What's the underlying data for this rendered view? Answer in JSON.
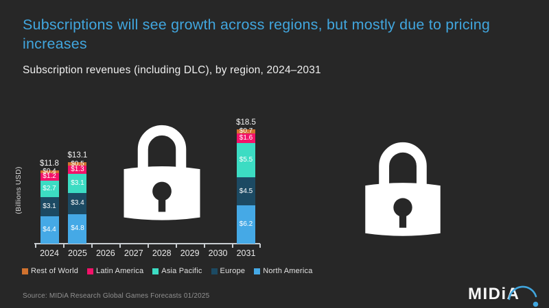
{
  "title": "Subscriptions will see growth across regions, but mostly due to pricing increases",
  "subtitle": "Subscription revenues (including DLC), by region, 2024–2031",
  "chart_data": {
    "type": "bar",
    "stacked": true,
    "title": "Subscription revenues (including DLC), by region, 2024–2031",
    "xlabel": "",
    "ylabel": "(Billions USD)",
    "categories": [
      "2024",
      "2025",
      "2026",
      "2027",
      "2028",
      "2029",
      "2030",
      "2031"
    ],
    "series": [
      {
        "name": "North America",
        "color": "#45a9e6",
        "values": [
          4.4,
          4.8,
          null,
          null,
          null,
          null,
          null,
          6.2
        ]
      },
      {
        "name": "Europe",
        "color": "#1c4a63",
        "values": [
          3.1,
          3.4,
          null,
          null,
          null,
          null,
          null,
          4.5
        ]
      },
      {
        "name": "Asia Pacific",
        "color": "#3cdcc3",
        "values": [
          2.7,
          3.1,
          null,
          null,
          null,
          null,
          null,
          5.5
        ]
      },
      {
        "name": "Latin America",
        "color": "#f31269",
        "values": [
          1.2,
          1.3,
          null,
          null,
          null,
          null,
          null,
          1.6
        ]
      },
      {
        "name": "Rest of World",
        "color": "#d0722f",
        "values": [
          0.4,
          0.5,
          null,
          null,
          null,
          null,
          null,
          0.7
        ]
      }
    ],
    "totals": [
      "$11.8",
      "$13.1",
      null,
      null,
      null,
      null,
      null,
      "$18.5"
    ],
    "value_prefix": "$",
    "locked_categories": [
      "2026",
      "2027",
      "2028",
      "2029",
      "2030"
    ],
    "legend_position": "bottom",
    "grid": false
  },
  "legend": {
    "items": [
      {
        "label": "Rest of World",
        "color": "#d0722f"
      },
      {
        "label": "Latin America",
        "color": "#f31269"
      },
      {
        "label": "Asia Pacific",
        "color": "#3cdcc3"
      },
      {
        "label": "Europe",
        "color": "#1c4a63"
      },
      {
        "label": "North America",
        "color": "#45a9e6"
      }
    ]
  },
  "source": "Source: MIDiA Research Global Games Forecasts 01/2025",
  "logo": {
    "text": "MIDiA"
  },
  "colors": {
    "background": "#272727",
    "title_accent": "#41a6de",
    "axis": "#c9cdd1",
    "lock": "#ffffff"
  }
}
